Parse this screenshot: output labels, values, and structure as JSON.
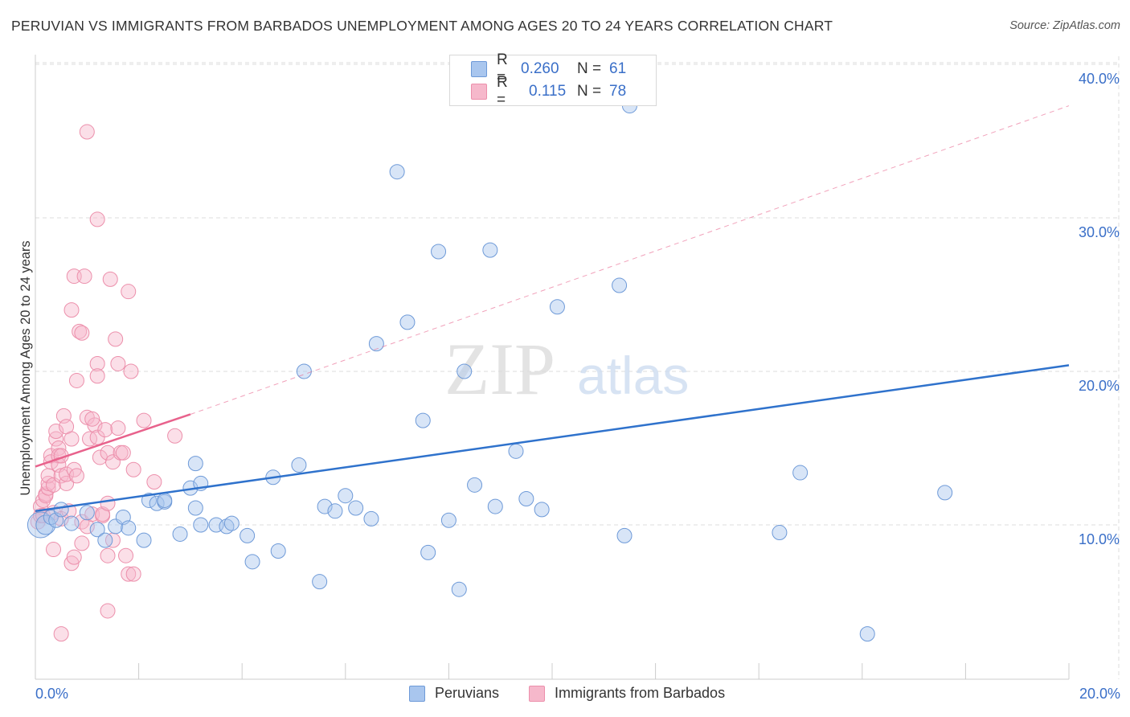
{
  "title": "PERUVIAN VS IMMIGRANTS FROM BARBADOS UNEMPLOYMENT AMONG AGES 20 TO 24 YEARS CORRELATION CHART",
  "source": "Source: ZipAtlas.com",
  "watermark": {
    "zip": "ZIP",
    "atlas": "atlas"
  },
  "colors": {
    "blue_fill": "#a9c6ee",
    "blue_stroke": "#6e9ad8",
    "blue_line": "#2f72cc",
    "pink_fill": "#f6b8cb",
    "pink_stroke": "#ec8fab",
    "pink_line": "#e8628c",
    "axis_text": "#3a6fc8",
    "grid": "#dddddd"
  },
  "legend": {
    "rows": [
      {
        "r_label": "R =",
        "r_value": "0.260",
        "n_label": "N =",
        "n_value": "61",
        "color": "#a9c6ee",
        "border": "#6e9ad8"
      },
      {
        "r_label": "R =",
        "r_value": "0.115",
        "n_label": "N =",
        "n_value": "78",
        "color": "#f6b8cb",
        "border": "#ec8fab"
      }
    ]
  },
  "bottom_legend": [
    {
      "label": "Peruvians",
      "color": "#a9c6ee",
      "border": "#6e9ad8"
    },
    {
      "label": "Immigrants from Barbados",
      "color": "#f6b8cb",
      "border": "#ec8fab"
    }
  ],
  "chart_data": {
    "type": "scatter",
    "title": "PERUVIAN VS IMMIGRANTS FROM BARBADOS UNEMPLOYMENT AMONG AGES 20 TO 24 YEARS CORRELATION CHART",
    "xlabel": "",
    "ylabel": "Unemployment Among Ages 20 to 24 years",
    "xlim": [
      0,
      20
    ],
    "ylim": [
      0,
      42
    ],
    "x_tick_labels": [
      {
        "value": 0,
        "label": "0.0%"
      },
      {
        "value": 20,
        "label": "20.0%"
      }
    ],
    "y_tick_labels": [
      {
        "value": 10,
        "label": "10.0%"
      },
      {
        "value": 20,
        "label": "20.0%"
      },
      {
        "value": 30,
        "label": "30.0%"
      },
      {
        "value": 40,
        "label": "40.0%"
      }
    ],
    "grid": true,
    "legend_position": "top-center",
    "series": [
      {
        "name": "Peruvians",
        "color": "#a9c6ee",
        "trend": {
          "x": [
            0,
            20
          ],
          "y": [
            10.9,
            20.4
          ],
          "style": "solid"
        },
        "points": [
          [
            0.1,
            10.0,
            16
          ],
          [
            0.2,
            10.0,
            12
          ],
          [
            0.3,
            10.5,
            9
          ],
          [
            0.4,
            10.3,
            9
          ],
          [
            0.5,
            11.0,
            9
          ],
          [
            0.7,
            10.1,
            9
          ],
          [
            1.0,
            10.8,
            9
          ],
          [
            1.2,
            9.7,
            9
          ],
          [
            1.35,
            9.0,
            9
          ],
          [
            1.55,
            9.9,
            9
          ],
          [
            1.7,
            10.5,
            9
          ],
          [
            1.8,
            9.8,
            9
          ],
          [
            2.1,
            9.0,
            9
          ],
          [
            2.2,
            11.6,
            9
          ],
          [
            2.35,
            11.4,
            9
          ],
          [
            2.5,
            11.5,
            9
          ],
          [
            2.5,
            11.6,
            9
          ],
          [
            2.8,
            9.4,
            9
          ],
          [
            3.0,
            12.4,
            9
          ],
          [
            3.1,
            14.0,
            9
          ],
          [
            3.1,
            11.1,
            9
          ],
          [
            3.2,
            12.7,
            9
          ],
          [
            3.2,
            10.0,
            9
          ],
          [
            3.5,
            10.0,
            9
          ],
          [
            3.7,
            9.9,
            9
          ],
          [
            3.8,
            10.1,
            9
          ],
          [
            4.1,
            9.3,
            9
          ],
          [
            4.2,
            7.6,
            9
          ],
          [
            4.6,
            13.1,
            9
          ],
          [
            4.7,
            8.3,
            9
          ],
          [
            5.1,
            13.9,
            9
          ],
          [
            5.2,
            20.0,
            9
          ],
          [
            5.5,
            6.3,
            9
          ],
          [
            5.6,
            11.2,
            9
          ],
          [
            5.8,
            10.9,
            9
          ],
          [
            6.0,
            11.9,
            9
          ],
          [
            6.2,
            11.1,
            9
          ],
          [
            6.5,
            10.4,
            9
          ],
          [
            6.6,
            21.8,
            9
          ],
          [
            7.0,
            33.0,
            9
          ],
          [
            7.2,
            23.2,
            9
          ],
          [
            7.5,
            16.8,
            9
          ],
          [
            7.6,
            8.2,
            9
          ],
          [
            7.8,
            27.8,
            9
          ],
          [
            8.0,
            10.3,
            9
          ],
          [
            8.2,
            5.8,
            9
          ],
          [
            8.3,
            20.0,
            9
          ],
          [
            8.5,
            12.6,
            9
          ],
          [
            8.8,
            27.9,
            9
          ],
          [
            8.9,
            11.2,
            9
          ],
          [
            9.3,
            14.8,
            9
          ],
          [
            9.5,
            11.7,
            9
          ],
          [
            9.8,
            11.0,
            9
          ],
          [
            10.1,
            24.2,
            9
          ],
          [
            11.3,
            25.6,
            9
          ],
          [
            11.4,
            9.3,
            9
          ],
          [
            11.5,
            37.3,
            9
          ],
          [
            14.4,
            9.5,
            9
          ],
          [
            14.8,
            13.4,
            9
          ],
          [
            16.1,
            2.9,
            9
          ],
          [
            17.6,
            12.1,
            9
          ]
        ]
      },
      {
        "name": "Immigrants from Barbados",
        "color": "#f6b8cb",
        "trend": {
          "x": [
            0,
            3.0
          ],
          "y": [
            13.8,
            17.2
          ],
          "style": "solid",
          "extended": {
            "x": [
              3.0,
              20
            ],
            "y": [
              17.2,
              37.3
            ],
            "style": "dashed"
          }
        },
        "points": [
          [
            0.05,
            10.2,
            9
          ],
          [
            0.1,
            10.6,
            9
          ],
          [
            0.1,
            11.2,
            9
          ],
          [
            0.15,
            11.6,
            9
          ],
          [
            0.15,
            10.6,
            9
          ],
          [
            0.2,
            12.0,
            9
          ],
          [
            0.2,
            11.9,
            9
          ],
          [
            0.25,
            12.4,
            9
          ],
          [
            0.25,
            12.7,
            9
          ],
          [
            0.25,
            13.2,
            9
          ],
          [
            0.3,
            14.5,
            9
          ],
          [
            0.3,
            14.1,
            9
          ],
          [
            0.35,
            12.6,
            9
          ],
          [
            0.35,
            8.4,
            9
          ],
          [
            0.35,
            10.8,
            9
          ],
          [
            0.4,
            15.6,
            9
          ],
          [
            0.4,
            16.1,
            9
          ],
          [
            0.45,
            15.0,
            9
          ],
          [
            0.45,
            14.5,
            9
          ],
          [
            0.45,
            13.9,
            9
          ],
          [
            0.5,
            13.2,
            9
          ],
          [
            0.5,
            14.5,
            9
          ],
          [
            0.5,
            10.4,
            9
          ],
          [
            0.5,
            2.9,
            9
          ],
          [
            0.55,
            17.1,
            9
          ],
          [
            0.6,
            16.4,
            9
          ],
          [
            0.6,
            12.7,
            9
          ],
          [
            0.6,
            13.3,
            9
          ],
          [
            0.65,
            10.9,
            9
          ],
          [
            0.7,
            15.6,
            9
          ],
          [
            0.7,
            7.5,
            9
          ],
          [
            0.75,
            7.9,
            9
          ],
          [
            0.75,
            13.6,
            9
          ],
          [
            0.7,
            24.0,
            9
          ],
          [
            0.75,
            26.2,
            9
          ],
          [
            0.8,
            19.4,
            9
          ],
          [
            0.8,
            13.2,
            9
          ],
          [
            0.85,
            22.6,
            9
          ],
          [
            0.9,
            10.2,
            9
          ],
          [
            0.9,
            22.5,
            9
          ],
          [
            0.9,
            8.8,
            9
          ],
          [
            0.95,
            26.2,
            9
          ],
          [
            1.0,
            35.6,
            9
          ],
          [
            1.0,
            9.9,
            9
          ],
          [
            1.05,
            15.6,
            9
          ],
          [
            1.0,
            17.0,
            9
          ],
          [
            1.1,
            10.7,
            9
          ],
          [
            1.15,
            16.5,
            9
          ],
          [
            1.1,
            16.9,
            9
          ],
          [
            1.2,
            29.9,
            9
          ],
          [
            1.2,
            20.5,
            9
          ],
          [
            1.2,
            19.7,
            9
          ],
          [
            1.2,
            15.7,
            9
          ],
          [
            1.25,
            14.4,
            9
          ],
          [
            1.3,
            10.6,
            9
          ],
          [
            1.3,
            10.7,
            9
          ],
          [
            1.35,
            16.2,
            9
          ],
          [
            1.4,
            14.7,
            9
          ],
          [
            1.4,
            11.4,
            9
          ],
          [
            1.4,
            4.4,
            9
          ],
          [
            1.4,
            8.0,
            9
          ],
          [
            1.45,
            26.0,
            9
          ],
          [
            1.5,
            9.0,
            9
          ],
          [
            1.55,
            22.1,
            9
          ],
          [
            1.5,
            14.1,
            9
          ],
          [
            1.6,
            20.5,
            9
          ],
          [
            1.6,
            16.3,
            9
          ],
          [
            1.65,
            14.7,
            9
          ],
          [
            1.7,
            14.7,
            9
          ],
          [
            1.75,
            8.0,
            9
          ],
          [
            1.8,
            25.2,
            9
          ],
          [
            1.8,
            6.8,
            9
          ],
          [
            1.85,
            20.0,
            9
          ],
          [
            1.9,
            6.8,
            9
          ],
          [
            1.9,
            13.6,
            9
          ],
          [
            2.1,
            16.8,
            9
          ],
          [
            2.3,
            12.8,
            9
          ],
          [
            2.7,
            15.8,
            9
          ]
        ]
      }
    ]
  }
}
